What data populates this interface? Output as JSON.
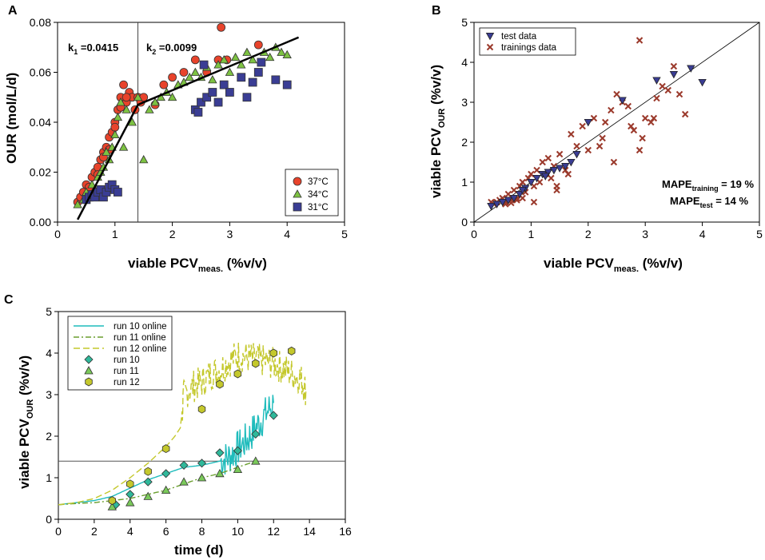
{
  "colors": {
    "red": "#e8432b",
    "green": "#7dc242",
    "blue": "#3a3d94",
    "cross": "#9b3a2c",
    "cyan": "#1fbcbc",
    "olive": "#6a9e2e",
    "yellow": "#c4c82c",
    "run10_marker": "#2fb89a",
    "run11_marker": "#7ac95a"
  },
  "chart_data": [
    {
      "panel": "A",
      "type": "scatter",
      "xlabel": "viable PCV",
      "xlabel_sub": "meas.",
      "xlabel_suffix": " (%v/v)",
      "ylabel": "OUR (mol/L/d)",
      "xlim": [
        0,
        5
      ],
      "ylim": [
        0,
        0.08
      ],
      "xticks": [
        "0",
        "1",
        "2",
        "3",
        "4",
        "5"
      ],
      "yticks": [
        "0.00",
        "0.02",
        "0.04",
        "0.06",
        "0.08"
      ],
      "annotations": {
        "k1_prefix": "k",
        "k1_sub": "1",
        "k1_value": " =0.0415",
        "k2_prefix": "k",
        "k2_sub": "2",
        "k2_value": " =0.0099"
      },
      "breakpoint_x": 1.4,
      "fit_line": [
        [
          0.35,
          0.001
        ],
        [
          1.4,
          0.047
        ],
        [
          4.2,
          0.074
        ]
      ],
      "legend": [
        "37°C",
        "34°C",
        "31°C"
      ],
      "series": [
        {
          "name": "37°C",
          "marker": "circle",
          "x": [
            0.35,
            0.4,
            0.45,
            0.5,
            0.55,
            0.6,
            0.65,
            0.7,
            0.75,
            0.8,
            0.85,
            0.9,
            0.95,
            1.0,
            1.05,
            1.1,
            1.15,
            1.2,
            1.25,
            1.3,
            1.35,
            1.4,
            1.45,
            1.5,
            1.7,
            1.85,
            2.0,
            2.2,
            2.4,
            2.6,
            2.8,
            2.85,
            2.95,
            3.5,
            0.9,
            1.0,
            1.1,
            1.2,
            0.7,
            0.8
          ],
          "y": [
            0.008,
            0.01,
            0.012,
            0.015,
            0.014,
            0.018,
            0.02,
            0.022,
            0.025,
            0.028,
            0.03,
            0.034,
            0.036,
            0.04,
            0.045,
            0.05,
            0.055,
            0.048,
            0.052,
            0.05,
            0.045,
            0.05,
            0.048,
            0.05,
            0.047,
            0.055,
            0.058,
            0.06,
            0.065,
            0.06,
            0.065,
            0.078,
            0.065,
            0.071,
            0.029,
            0.038,
            0.046,
            0.05,
            0.019,
            0.026
          ]
        },
        {
          "name": "34°C",
          "marker": "triangle",
          "x": [
            0.35,
            0.45,
            0.5,
            0.6,
            0.7,
            0.75,
            0.8,
            0.9,
            0.95,
            1.0,
            1.05,
            1.1,
            1.2,
            1.3,
            1.4,
            1.5,
            1.6,
            1.7,
            1.8,
            1.9,
            2.0,
            2.1,
            2.2,
            2.3,
            2.4,
            2.5,
            2.6,
            2.7,
            2.8,
            2.9,
            3.0,
            3.1,
            3.2,
            3.3,
            3.4,
            3.6,
            3.7,
            3.8,
            3.9,
            4.0,
            0.85,
            1.15
          ],
          "y": [
            0.007,
            0.009,
            0.012,
            0.015,
            0.018,
            0.02,
            0.022,
            0.025,
            0.03,
            0.035,
            0.042,
            0.048,
            0.045,
            0.04,
            0.05,
            0.025,
            0.045,
            0.048,
            0.05,
            0.052,
            0.05,
            0.055,
            0.056,
            0.058,
            0.06,
            0.058,
            0.062,
            0.057,
            0.063,
            0.065,
            0.06,
            0.066,
            0.063,
            0.068,
            0.065,
            0.068,
            0.066,
            0.07,
            0.068,
            0.067,
            0.028,
            0.03
          ]
        },
        {
          "name": "31°C",
          "marker": "square",
          "x": [
            0.5,
            0.55,
            0.6,
            0.65,
            0.7,
            0.75,
            0.8,
            0.85,
            0.9,
            0.95,
            1.0,
            1.05,
            2.4,
            2.5,
            2.6,
            2.7,
            2.8,
            2.9,
            3.0,
            3.2,
            3.4,
            3.5,
            3.8,
            2.45,
            2.55,
            3.3,
            3.55,
            4.0
          ],
          "y": [
            0.009,
            0.01,
            0.011,
            0.01,
            0.012,
            0.013,
            0.01,
            0.012,
            0.014,
            0.015,
            0.013,
            0.012,
            0.045,
            0.048,
            0.05,
            0.052,
            0.048,
            0.055,
            0.052,
            0.058,
            0.056,
            0.06,
            0.057,
            0.044,
            0.063,
            0.05,
            0.064,
            0.055
          ]
        }
      ]
    },
    {
      "panel": "B",
      "type": "scatter",
      "xlabel": "viable PCV",
      "xlabel_sub": "meas.",
      "xlabel_suffix": " (%v/v)",
      "ylabel": "viable PCV",
      "ylabel_sub": "OUR",
      "ylabel_suffix": " (%v/v)",
      "xlim": [
        0,
        5
      ],
      "ylim": [
        0,
        5
      ],
      "xticks": [
        "0",
        "1",
        "2",
        "3",
        "4",
        "5"
      ],
      "yticks": [
        "0",
        "1",
        "2",
        "3",
        "4",
        "5"
      ],
      "identity_line": true,
      "legend": [
        "test data",
        "trainings data"
      ],
      "mape": {
        "training_label": "MAPE",
        "training_sub": "training",
        "training_value": " = 19 %",
        "test_label": "MAPE",
        "test_sub": "test",
        "test_value": " = 14 %"
      },
      "series": [
        {
          "name": "test data",
          "marker": "triangle-down",
          "x": [
            0.3,
            0.4,
            0.5,
            0.6,
            0.7,
            0.8,
            0.9,
            1.0,
            1.1,
            1.2,
            1.3,
            1.4,
            1.5,
            1.6,
            1.7,
            1.8,
            2.0,
            2.6,
            3.2,
            3.5,
            3.8,
            4.0,
            0.85,
            1.25
          ],
          "y": [
            0.4,
            0.45,
            0.5,
            0.55,
            0.6,
            0.7,
            0.85,
            1.0,
            1.1,
            1.2,
            1.25,
            1.3,
            1.35,
            1.4,
            1.5,
            1.7,
            2.5,
            3.05,
            3.55,
            3.7,
            3.85,
            3.5,
            0.8,
            1.15
          ]
        },
        {
          "name": "trainings data",
          "marker": "x",
          "x": [
            0.3,
            0.35,
            0.4,
            0.45,
            0.5,
            0.55,
            0.6,
            0.65,
            0.7,
            0.75,
            0.8,
            0.85,
            0.9,
            0.95,
            1.0,
            1.05,
            1.1,
            1.15,
            1.2,
            1.25,
            1.3,
            1.35,
            1.4,
            1.45,
            1.5,
            1.6,
            1.7,
            1.8,
            1.9,
            2.0,
            2.1,
            2.2,
            2.3,
            2.4,
            2.5,
            2.6,
            2.7,
            2.8,
            2.9,
            3.0,
            3.1,
            3.2,
            3.3,
            3.4,
            3.5,
            3.6,
            3.7,
            2.9,
            2.75,
            2.45,
            1.45,
            1.65,
            0.85,
            1.05,
            2.25,
            2.95,
            3.15,
            0.55,
            0.65,
            0.75
          ],
          "y": [
            0.5,
            0.45,
            0.5,
            0.55,
            0.6,
            0.5,
            0.7,
            0.55,
            0.8,
            0.6,
            0.9,
            1.0,
            0.75,
            1.1,
            1.2,
            0.9,
            1.3,
            1.0,
            1.5,
            1.2,
            1.6,
            1.1,
            1.4,
            0.8,
            1.7,
            1.3,
            2.2,
            1.9,
            2.4,
            1.8,
            2.6,
            1.9,
            2.5,
            2.8,
            3.2,
            3.0,
            2.9,
            2.3,
            4.55,
            2.6,
            2.5,
            3.1,
            3.4,
            3.3,
            3.9,
            3.2,
            2.7,
            1.8,
            2.4,
            1.5,
            0.9,
            1.2,
            0.6,
            0.5,
            2.1,
            2.1,
            2.6,
            0.45,
            0.48,
            0.55
          ]
        }
      ]
    },
    {
      "panel": "C",
      "type": "line",
      "xlabel": "time (d)",
      "ylabel": "viable PCV",
      "ylabel_sub": "OUR",
      "ylabel_suffix": " (%v/v)",
      "xlim": [
        0,
        16
      ],
      "ylim": [
        0,
        5
      ],
      "xticks": [
        "0",
        "2",
        "4",
        "6",
        "8",
        "10",
        "12",
        "14",
        "16"
      ],
      "yticks": [
        "0",
        "1",
        "2",
        "3",
        "4",
        "5"
      ],
      "threshold_y": 1.4,
      "legend": [
        "run 10 online",
        "run 11 online",
        "run 12 online",
        "run 10",
        "run 11",
        "run 12"
      ],
      "series": [
        {
          "name": "run 10 online",
          "style": "solid",
          "x": [
            0,
            1,
            2,
            3,
            4,
            5,
            6,
            7,
            8,
            8.5,
            9,
            9.5,
            10,
            10.5,
            11,
            11.5,
            12
          ],
          "y": [
            0.35,
            0.4,
            0.45,
            0.55,
            0.75,
            0.95,
            1.1,
            1.25,
            1.3,
            1.35,
            1.4,
            1.5,
            1.7,
            1.9,
            2.2,
            2.5,
            2.8
          ]
        },
        {
          "name": "run 11 online",
          "style": "dashdot",
          "x": [
            0,
            1,
            2,
            3,
            4,
            5,
            6,
            7,
            8,
            9,
            10,
            11
          ],
          "y": [
            0.35,
            0.38,
            0.4,
            0.45,
            0.5,
            0.6,
            0.7,
            0.85,
            1.0,
            1.1,
            1.25,
            1.4
          ]
        },
        {
          "name": "run 12 online",
          "style": "dashed",
          "x": [
            0,
            1,
            2,
            3,
            4,
            5,
            6,
            6.5,
            6.8,
            7,
            7.5,
            8,
            8.5,
            9,
            9.5,
            10,
            10.5,
            11,
            11.5,
            12,
            12.5,
            13,
            13.5,
            13.8
          ],
          "y": [
            0.35,
            0.4,
            0.5,
            0.7,
            1.0,
            1.35,
            1.75,
            2.0,
            2.2,
            3.0,
            3.2,
            3.3,
            3.5,
            3.6,
            3.8,
            3.95,
            3.9,
            3.85,
            3.8,
            3.75,
            3.65,
            3.5,
            3.4,
            3.1
          ]
        },
        {
          "name": "run 10",
          "marker": "diamond",
          "x": [
            3.2,
            4,
            5,
            6,
            7,
            8,
            9,
            10,
            11,
            12
          ],
          "y": [
            0.35,
            0.6,
            0.9,
            1.1,
            1.3,
            1.35,
            1.6,
            1.65,
            2.05,
            2.5
          ]
        },
        {
          "name": "run 11",
          "marker": "triangle",
          "x": [
            3,
            4,
            5,
            6,
            7,
            8,
            9,
            10,
            11
          ],
          "y": [
            0.3,
            0.4,
            0.55,
            0.7,
            0.9,
            1.0,
            1.1,
            1.2,
            1.4
          ]
        },
        {
          "name": "run 12",
          "marker": "hexagon",
          "x": [
            3,
            4,
            5,
            6,
            8,
            9,
            10,
            11,
            12,
            13
          ],
          "y": [
            0.45,
            0.85,
            1.15,
            1.7,
            2.65,
            3.25,
            3.5,
            3.75,
            4.0,
            4.05
          ]
        }
      ]
    }
  ]
}
